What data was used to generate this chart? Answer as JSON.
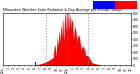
{
  "title": "Milwaukee Weather Solar Radiation & Day Average per Minute (Today)",
  "bar_color": "#ff0000",
  "avg_line_color": "#0000ff",
  "legend_colors": [
    "#0000ff",
    "#ff0000"
  ],
  "background_color": "#ffffff",
  "plot_bg_color": "#ffffff",
  "grid_color": "#888888",
  "ylim": [
    0,
    800
  ],
  "yticks": [
    0,
    100,
    200,
    300,
    400,
    500,
    600,
    700,
    800
  ],
  "num_minutes": 1440,
  "solar_data_start": 370,
  "solar_data_end": 1090,
  "peak_minute": 730,
  "peak_value": 780,
  "blue_line_x": 365,
  "dashed_lines": [
    480,
    720,
    960
  ],
  "xtick_positions": [
    0,
    60,
    120,
    180,
    240,
    300,
    360,
    420,
    480,
    540,
    600,
    660,
    720,
    780,
    840,
    900,
    960,
    1020,
    1080,
    1140,
    1200,
    1260,
    1320,
    1380,
    1439
  ],
  "xtick_labels": [
    "12a",
    "1",
    "2",
    "3",
    "4",
    "5",
    "6",
    "7",
    "8",
    "9",
    "10",
    "11",
    "12p",
    "1",
    "2",
    "3",
    "4",
    "5",
    "6",
    "7",
    "8",
    "9",
    "10",
    "11",
    "12"
  ],
  "spike_centers": [
    580,
    610,
    630,
    650,
    670,
    695,
    715,
    735,
    755,
    775,
    810,
    850,
    900,
    950
  ],
  "spike_amps": [
    0.55,
    0.65,
    0.75,
    0.85,
    0.95,
    1.05,
    1.1,
    1.08,
    0.98,
    0.92,
    0.82,
    0.72,
    0.55,
    0.38
  ],
  "spike_widths": [
    12,
    10,
    10,
    10,
    10,
    10,
    10,
    10,
    12,
    15,
    20,
    25,
    30,
    35
  ]
}
